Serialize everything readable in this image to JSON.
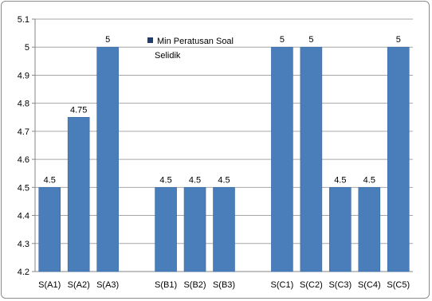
{
  "chart_data": {
    "type": "bar",
    "title": "",
    "xlabel": "",
    "ylabel": "",
    "ylim": [
      4.2,
      5.1
    ],
    "y_ticks": [
      "4.2",
      "4.3",
      "4.4",
      "4.5",
      "4.6",
      "4.7",
      "4.8",
      "4.9",
      "5",
      "5.1"
    ],
    "grid": true,
    "legend_position": "top-right",
    "bar_color": "#4a7ebb",
    "categories": [
      "S(A1)",
      "S(A2)",
      "S(A3)",
      "",
      "S(B1)",
      "S(B2)",
      "S(B3)",
      "",
      "S(C1)",
      "S(C2)",
      "S(C3)",
      "S(C4)",
      "S(C5)"
    ],
    "series": [
      {
        "name": "Min Peratusan Soal Selidik",
        "values": [
          4.5,
          4.75,
          5,
          null,
          4.5,
          4.5,
          4.5,
          null,
          5,
          5,
          4.5,
          4.5,
          5
        ],
        "data_labels": [
          "4.5",
          "4.75",
          "5",
          "",
          "4.5",
          "4.5",
          "4.5",
          "",
          "5",
          "5",
          "4.5",
          "4.5",
          "5"
        ]
      }
    ],
    "legend": {
      "line1": "Min Peratusan Soal",
      "line2": "Selidik"
    }
  }
}
